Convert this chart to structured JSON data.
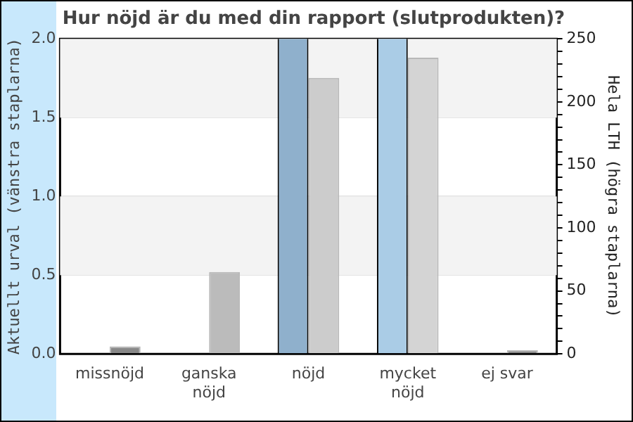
{
  "chart_data": {
    "type": "bar",
    "title": "Hur nöjd är du med din rapport (slutprodukten)?",
    "ylabel": "Aktuellt urval (vänstra staplarna)",
    "y2label": "Hela LTH (högra staplarna)",
    "categories": [
      "missnöjd",
      "ganska\nnöjd",
      "nöjd",
      "mycket\nnöjd",
      "ej svar"
    ],
    "series": [
      {
        "colors": [
          "#8fb0cc",
          "#8fb0cc",
          "#8fb0cc",
          "#aacce6",
          "#8fb0cc"
        ],
        "values": [
          0,
          0,
          2,
          2,
          0
        ]
      },
      {
        "colors": [
          "#888888",
          "#bbbbbb",
          "#cccccc",
          "#d4d4d4",
          "#888888"
        ],
        "axis": "y2",
        "values": [
          6,
          65,
          219,
          235,
          3
        ]
      }
    ],
    "ylim": [
      0,
      2
    ],
    "yticks": [
      {
        "value": 0,
        "label": "0.0"
      },
      {
        "value": 0.5,
        "label": "0.5"
      },
      {
        "value": 1,
        "label": "1.0"
      },
      {
        "value": 1.5,
        "label": "1.5"
      },
      {
        "value": 2,
        "label": "2.0"
      }
    ],
    "y2lim": [
      0,
      250
    ],
    "y2ticks": [
      0,
      {
        "value": 10,
        "label": null
      },
      {
        "value": 20,
        "label": null
      },
      {
        "value": 30,
        "label": null
      },
      {
        "value": 40,
        "label": null
      },
      50,
      {
        "value": 60,
        "label": null
      },
      {
        "value": 70,
        "label": null
      },
      {
        "value": 80,
        "label": null
      },
      {
        "value": 90,
        "label": null
      },
      100,
      {
        "value": 110,
        "label": null
      },
      {
        "value": 120,
        "label": null
      },
      {
        "value": 130,
        "label": null
      },
      {
        "value": 140,
        "label": null
      },
      150,
      {
        "value": 160,
        "label": null
      },
      {
        "value": 170,
        "label": null
      },
      {
        "value": 180,
        "label": null
      },
      {
        "value": 190,
        "label": null
      },
      200,
      {
        "value": 210,
        "label": null
      },
      {
        "value": 220,
        "label": null
      },
      {
        "value": 230,
        "label": null
      },
      {
        "value": 240,
        "label": null
      },
      250
    ],
    "grid": "y",
    "legend": false
  }
}
